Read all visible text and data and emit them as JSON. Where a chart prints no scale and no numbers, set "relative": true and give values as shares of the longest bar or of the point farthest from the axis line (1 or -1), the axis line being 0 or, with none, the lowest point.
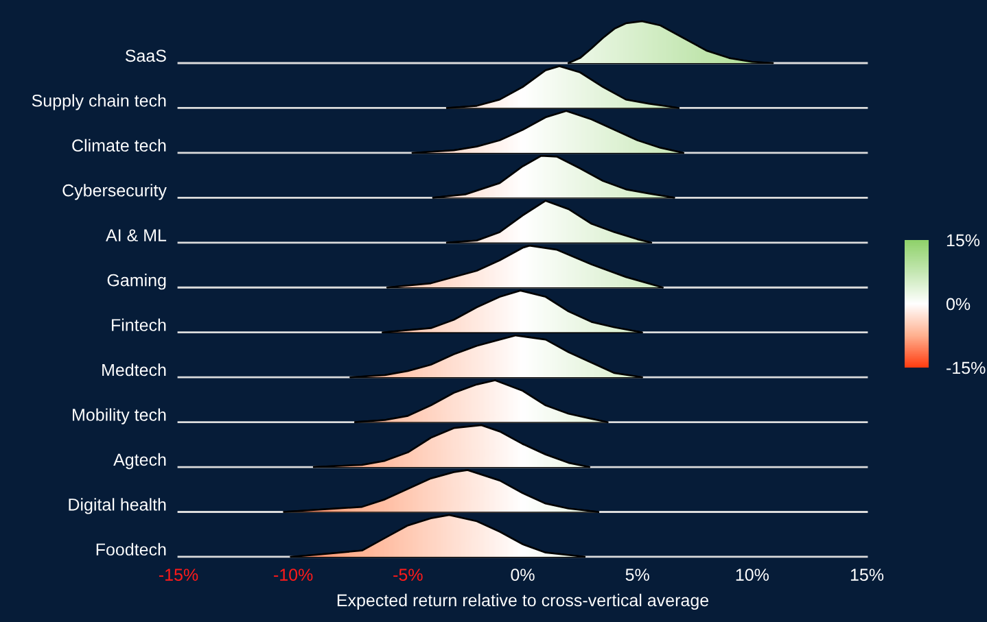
{
  "chart_data": [
    {
      "type": "area",
      "ylabel": "SaaS",
      "relative": true,
      "xlim": [
        -15,
        15
      ],
      "tick_labels": false,
      "x": [
        2.0,
        2.5,
        3.0,
        3.5,
        4.0,
        4.5,
        5.2,
        6.0,
        7.0,
        8.0,
        9.0,
        10.0,
        10.9
      ],
      "values": [
        0,
        0.12,
        0.35,
        0.6,
        0.82,
        0.95,
        1.0,
        0.9,
        0.6,
        0.3,
        0.12,
        0.03,
        0
      ]
    },
    {
      "type": "area",
      "ylabel": "Supply chain tech",
      "relative": true,
      "xlim": [
        -15,
        15
      ],
      "tick_labels": false,
      "x": [
        -3.3,
        -2,
        -1,
        0,
        1,
        1.6,
        2.5,
        3.5,
        4.5,
        5.5,
        6.8
      ],
      "values": [
        0,
        0.05,
        0.2,
        0.5,
        0.9,
        1,
        0.85,
        0.5,
        0.2,
        0.1,
        0
      ]
    },
    {
      "type": "area",
      "ylabel": "Climate tech",
      "relative": true,
      "xlim": [
        -15,
        15
      ],
      "tick_labels": false,
      "x": [
        -4.8,
        -3,
        -2,
        -1,
        0,
        1,
        1.9,
        3,
        4,
        5,
        6,
        7
      ],
      "values": [
        0,
        0.06,
        0.15,
        0.3,
        0.55,
        0.85,
        1,
        0.8,
        0.55,
        0.3,
        0.12,
        0
      ]
    },
    {
      "type": "area",
      "ylabel": "Cybersecurity",
      "relative": true,
      "xlim": [
        -15,
        15
      ],
      "tick_labels": false,
      "x": [
        -3.9,
        -2.5,
        -1,
        0,
        0.8,
        1.5,
        2.5,
        3.5,
        4.5,
        5.5,
        6.6
      ],
      "values": [
        0,
        0.08,
        0.35,
        0.75,
        1,
        0.98,
        0.7,
        0.4,
        0.2,
        0.1,
        0
      ]
    },
    {
      "type": "area",
      "ylabel": "AI & ML",
      "relative": true,
      "xlim": [
        -15,
        15
      ],
      "tick_labels": false,
      "x": [
        -3.3,
        -2,
        -1,
        0,
        1,
        2,
        3,
        4,
        5,
        5.6
      ],
      "values": [
        0,
        0.05,
        0.25,
        0.65,
        1,
        0.8,
        0.45,
        0.25,
        0.08,
        0
      ]
    },
    {
      "type": "area",
      "ylabel": "Gaming",
      "relative": true,
      "xlim": [
        -15,
        15
      ],
      "tick_labels": false,
      "x": [
        -5.9,
        -4,
        -2,
        -1,
        0,
        0.3,
        1.5,
        3,
        4.5,
        6.1
      ],
      "values": [
        0,
        0.1,
        0.4,
        0.65,
        0.95,
        1,
        0.9,
        0.55,
        0.25,
        0
      ]
    },
    {
      "type": "area",
      "ylabel": "Fintech",
      "relative": true,
      "xlim": [
        -15,
        15
      ],
      "tick_labels": false,
      "x": [
        -6.1,
        -4,
        -3,
        -2,
        -1,
        -0.1,
        1,
        2,
        3,
        4,
        5.2
      ],
      "values": [
        0,
        0.1,
        0.3,
        0.6,
        0.85,
        1,
        0.85,
        0.5,
        0.25,
        0.12,
        0
      ]
    },
    {
      "type": "area",
      "ylabel": "Medtech",
      "relative": true,
      "xlim": [
        -15,
        15
      ],
      "tick_labels": false,
      "x": [
        -7.5,
        -6,
        -5,
        -4,
        -3,
        -2,
        -1,
        -0.3,
        1,
        2,
        3,
        4,
        5.2
      ],
      "values": [
        0,
        0.05,
        0.15,
        0.3,
        0.55,
        0.75,
        0.9,
        1,
        0.9,
        0.6,
        0.35,
        0.1,
        0
      ]
    },
    {
      "type": "area",
      "ylabel": "Mobility tech",
      "relative": true,
      "xlim": [
        -15,
        15
      ],
      "tick_labels": false,
      "x": [
        -7.3,
        -6,
        -5,
        -4,
        -3,
        -2,
        -1.2,
        0,
        1,
        2,
        3,
        3.7
      ],
      "values": [
        0,
        0.05,
        0.15,
        0.4,
        0.7,
        0.9,
        1,
        0.75,
        0.4,
        0.2,
        0.08,
        0
      ]
    },
    {
      "type": "area",
      "ylabel": "Agtech",
      "relative": true,
      "xlim": [
        -15,
        15
      ],
      "tick_labels": false,
      "x": [
        -9.1,
        -7,
        -6,
        -5,
        -4,
        -3,
        -1.8,
        -1,
        0,
        1,
        2,
        2.9
      ],
      "values": [
        0,
        0.05,
        0.15,
        0.35,
        0.7,
        0.93,
        1,
        0.85,
        0.55,
        0.3,
        0.1,
        0
      ]
    },
    {
      "type": "area",
      "ylabel": "Digital health",
      "relative": true,
      "xlim": [
        -15,
        15
      ],
      "tick_labels": false,
      "x": [
        -10.4,
        -9,
        -7,
        -6,
        -5,
        -4,
        -3,
        -2.4,
        -1,
        0,
        1,
        2,
        3.3
      ],
      "values": [
        0,
        0.05,
        0.12,
        0.3,
        0.55,
        0.8,
        0.95,
        1,
        0.75,
        0.45,
        0.2,
        0.08,
        0
      ]
    },
    {
      "type": "area",
      "ylabel": "Foodtech",
      "relative": true,
      "xlim": [
        -15,
        15
      ],
      "tick_labels": "x",
      "xlabel": "Expected return relative to cross-vertical average",
      "x": [
        -10.1,
        -9,
        -7,
        -6,
        -5,
        -4,
        -3.2,
        -2,
        -1,
        0,
        1,
        2.7
      ],
      "values": [
        0,
        0.05,
        0.15,
        0.45,
        0.75,
        0.92,
        1,
        0.85,
        0.6,
        0.3,
        0.1,
        0
      ],
      "xticks": [
        {
          "value": -15,
          "label": "-15%"
        },
        {
          "value": -10,
          "label": "-10%"
        },
        {
          "value": -5,
          "label": "-5%"
        },
        {
          "value": 0,
          "label": "0%"
        },
        {
          "value": 5,
          "label": "5%"
        },
        {
          "value": 10,
          "label": "10%"
        },
        {
          "value": 15,
          "label": "15%"
        }
      ],
      "clim": [
        -15,
        15
      ],
      "cticks": [
        {
          "value": -15,
          "label": "-15%"
        },
        {
          "value": 0,
          "label": "0%"
        },
        {
          "value": 15,
          "label": "15%"
        }
      ]
    }
  ]
}
